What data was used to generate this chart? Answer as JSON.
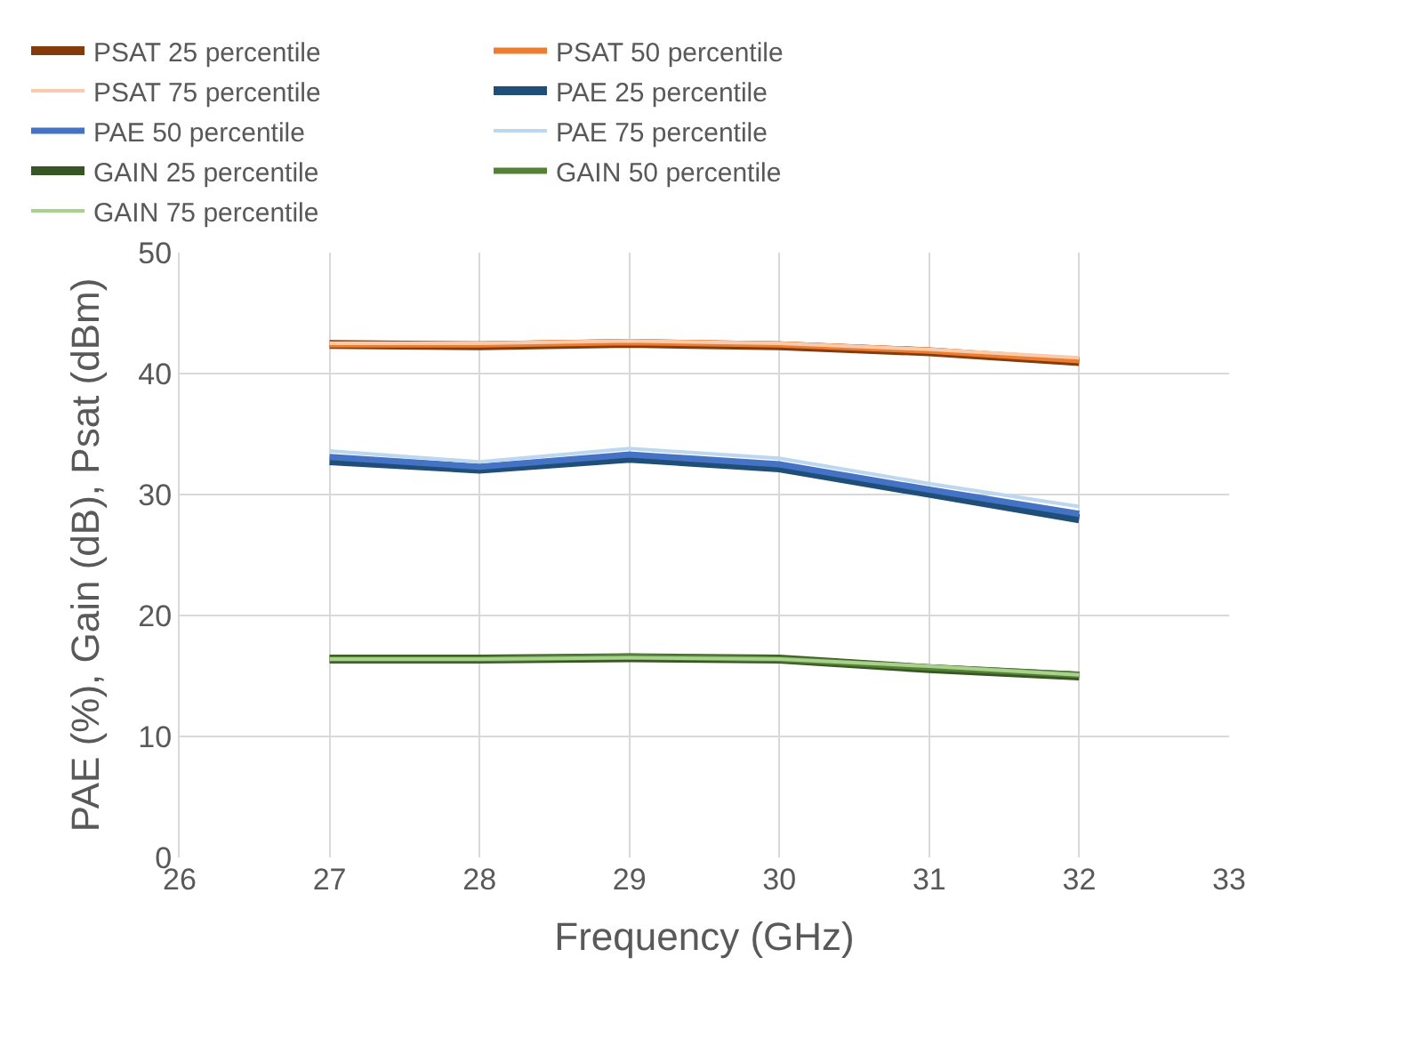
{
  "chart_data": {
    "type": "line",
    "xlabel": "Frequency (GHz)",
    "ylabel": "PAE (%), Gain (dB), Psat (dBm)",
    "x": [
      27,
      28,
      29,
      30,
      31,
      32
    ],
    "series": [
      {
        "name": "PSAT 25 percentile",
        "color": "#843c0c",
        "values": [
          42.4,
          42.3,
          42.5,
          42.3,
          41.8,
          41.0
        ]
      },
      {
        "name": "PSAT 50 percentile",
        "color": "#ed7d31",
        "values": [
          42.4,
          42.4,
          42.6,
          42.4,
          41.9,
          41.1
        ]
      },
      {
        "name": "PSAT 75 percentile",
        "color": "#f8cbad",
        "values": [
          42.5,
          42.5,
          42.7,
          42.5,
          42.0,
          41.3
        ]
      },
      {
        "name": "PAE 25 percentile",
        "color": "#1f4e79",
        "values": [
          32.8,
          32.1,
          33.0,
          32.2,
          30.1,
          28.0
        ]
      },
      {
        "name": "PAE 50 percentile",
        "color": "#4472c4",
        "values": [
          33.1,
          32.3,
          33.3,
          32.5,
          30.4,
          28.4
        ]
      },
      {
        "name": "PAE 75 percentile",
        "color": "#bdd7ee",
        "values": [
          33.6,
          32.7,
          33.8,
          33.0,
          30.9,
          29.0
        ]
      },
      {
        "name": "GAIN 25 percentile",
        "color": "#375623",
        "values": [
          16.4,
          16.4,
          16.5,
          16.4,
          15.6,
          15.0
        ]
      },
      {
        "name": "GAIN 50 percentile",
        "color": "#548235",
        "values": [
          16.4,
          16.4,
          16.6,
          16.4,
          15.7,
          15.1
        ]
      },
      {
        "name": "GAIN 75 percentile",
        "color": "#a9d18e",
        "values": [
          16.4,
          16.4,
          16.5,
          16.4,
          15.8,
          15.1
        ]
      }
    ],
    "xlim": [
      26,
      33
    ],
    "xticks": [
      26,
      27,
      28,
      29,
      30,
      31,
      32,
      33
    ],
    "ylim": [
      0,
      50
    ],
    "yticks": [
      0,
      10,
      20,
      30,
      40,
      50
    ],
    "grid": true,
    "legend": "top",
    "marker": "none",
    "line_style": "solid"
  }
}
